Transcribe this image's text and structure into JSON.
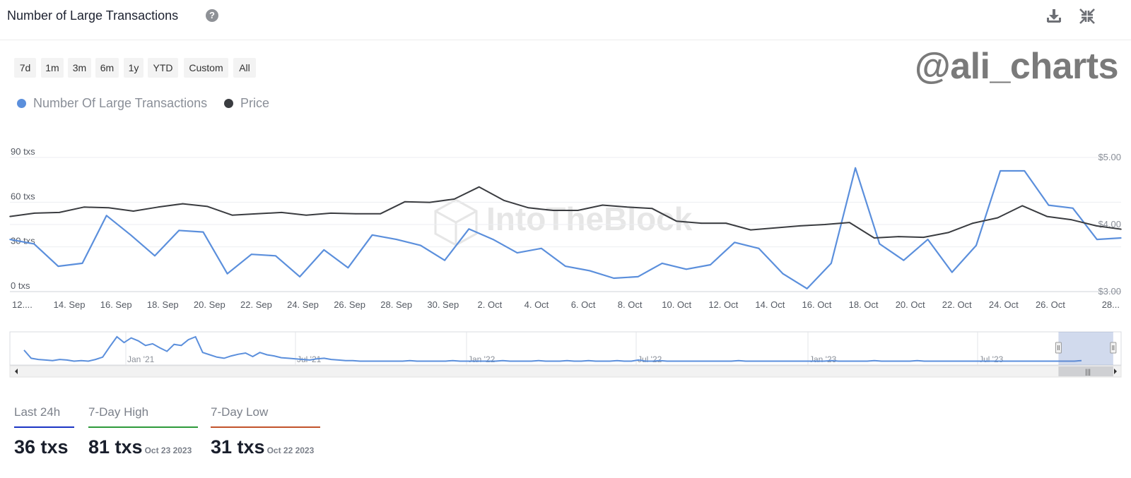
{
  "header": {
    "title": "Number of Large Transactions",
    "help_icon": "question-circle-icon",
    "download_icon": "download-icon",
    "collapse_icon": "collapse-icon"
  },
  "time_ranges": [
    "7d",
    "1m",
    "3m",
    "6m",
    "1y",
    "YTD",
    "Custom",
    "All"
  ],
  "watermark_handle": "@ali_charts",
  "watermark_brand": "IntoTheBlock",
  "legend": [
    {
      "label": "Number Of Large Transactions",
      "color": "#5b8fdc"
    },
    {
      "label": "Price",
      "color": "#3a3c40"
    }
  ],
  "chart_data": {
    "type": "line",
    "x_tick_labels": [
      "12....",
      "14. Sep",
      "16. Sep",
      "18. Sep",
      "20. Sep",
      "22. Sep",
      "24. Sep",
      "26. Sep",
      "28. Sep",
      "30. Sep",
      "2. Oct",
      "4. Oct",
      "6. Oct",
      "8. Oct",
      "10. Oct",
      "12. Oct",
      "14. Oct",
      "16. Oct",
      "18. Oct",
      "20. Oct",
      "22. Oct",
      "24. Oct",
      "26. Oct",
      "28..."
    ],
    "y_left_ticks": [
      "0 txs",
      "30 txs",
      "60 txs",
      "90 txs"
    ],
    "y_right_ticks": [
      "$3.00",
      "$4.00",
      "$5.00"
    ],
    "y_left_range": [
      0,
      90
    ],
    "y_right_range": [
      3.0,
      5.0
    ],
    "series": [
      {
        "name": "Number Of Large Transactions",
        "axis": "left",
        "color": "#5b8fdc",
        "values": [
          35,
          32,
          17,
          19,
          51,
          38,
          24,
          41,
          40,
          12,
          25,
          24,
          10,
          28,
          16,
          38,
          35,
          31,
          21,
          42,
          35,
          26,
          29,
          17,
          14,
          9,
          10,
          19,
          15,
          18,
          33,
          29,
          12,
          2,
          19,
          83,
          32,
          21,
          35,
          13,
          31,
          81,
          81,
          58,
          56,
          35,
          36
        ]
      },
      {
        "name": "Price",
        "axis": "right",
        "color": "#3a3c40",
        "values": [
          4.12,
          4.17,
          4.18,
          4.26,
          4.25,
          4.2,
          4.26,
          4.31,
          4.27,
          4.14,
          4.16,
          4.18,
          4.14,
          4.17,
          4.16,
          4.16,
          4.34,
          4.33,
          4.38,
          4.56,
          4.36,
          4.25,
          4.21,
          4.21,
          4.29,
          4.26,
          4.24,
          4.05,
          4.02,
          4.02,
          3.92,
          3.95,
          3.98,
          4.0,
          4.03,
          3.8,
          3.82,
          3.81,
          3.88,
          4.02,
          4.1,
          4.28,
          4.12,
          4.07,
          3.98,
          3.93
        ]
      }
    ],
    "grid": true
  },
  "navigator": {
    "labels": [
      "Jan '21",
      "Jul '21",
      "Jan '22",
      "Jul '22",
      "Jan '23",
      "Jul '23"
    ],
    "values": [
      22,
      8,
      6,
      5,
      4,
      6,
      5,
      3,
      4,
      3,
      6,
      10,
      28,
      45,
      35,
      43,
      38,
      30,
      33,
      26,
      20,
      32,
      30,
      40,
      45,
      18,
      14,
      10,
      8,
      12,
      15,
      17,
      11,
      18,
      14,
      12,
      9,
      8,
      7,
      6,
      5,
      7,
      8,
      6,
      5,
      4,
      4,
      3,
      3,
      3,
      3,
      3,
      3,
      3,
      4,
      3,
      3,
      3,
      3,
      3,
      4,
      3,
      3,
      3,
      3,
      3,
      3,
      4,
      3,
      3,
      3,
      3,
      4,
      3,
      3,
      3,
      4,
      3,
      3,
      4,
      3,
      3,
      3,
      4,
      3,
      3,
      5,
      3,
      3,
      4,
      3,
      3,
      3,
      3,
      3,
      3,
      3,
      3,
      3,
      3,
      4,
      3,
      3,
      3,
      3,
      3,
      3,
      3,
      3,
      3,
      3,
      3,
      3,
      4,
      3,
      3,
      3,
      3,
      3,
      4,
      3,
      3,
      3,
      3,
      3,
      4,
      3,
      3,
      3,
      3,
      3,
      3,
      3,
      3,
      3,
      3,
      3,
      3,
      3,
      3,
      3,
      3,
      3,
      3,
      3,
      3,
      3,
      3,
      4
    ],
    "selection_start": 0.95,
    "selection_end": 0.998
  },
  "stats": [
    {
      "label": "Last 24h",
      "value": "36 txs",
      "date": "",
      "color": "#1b35c4"
    },
    {
      "label": "7-Day High",
      "value": "81 txs",
      "date": "Oct 23 2023",
      "color": "#2e9a3a"
    },
    {
      "label": "7-Day Low",
      "value": "31 txs",
      "date": "Oct 22 2023",
      "color": "#c2532a"
    }
  ]
}
